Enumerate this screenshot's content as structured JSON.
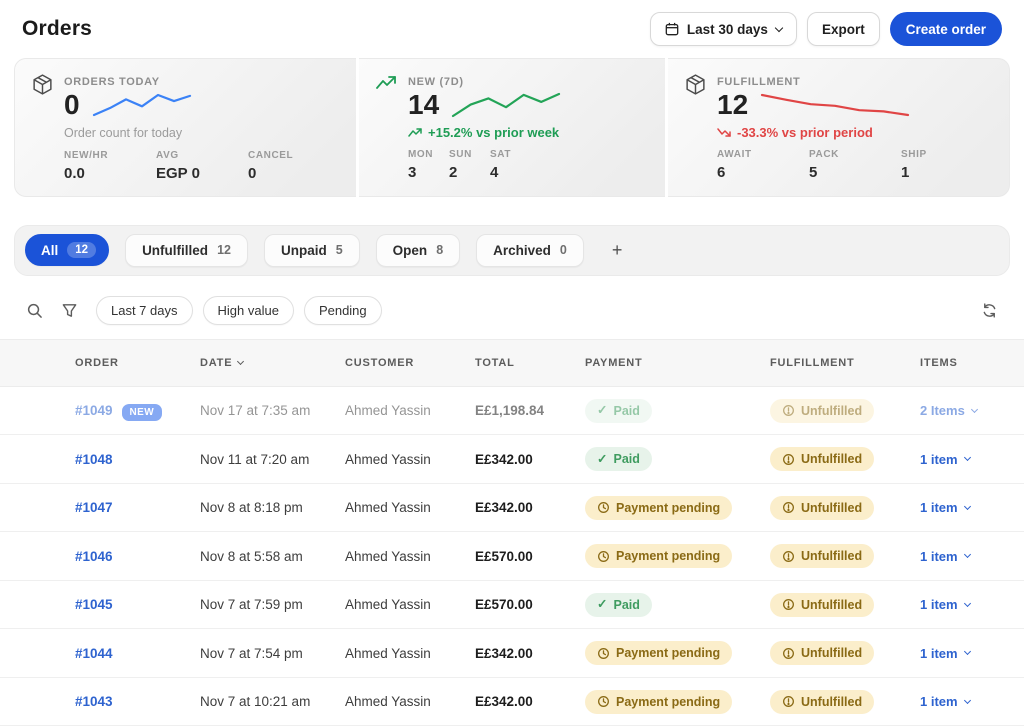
{
  "page": {
    "title": "Orders"
  },
  "header_actions": {
    "date_range_label": "Last 30 days",
    "export_label": "Export",
    "create_order_label": "Create order"
  },
  "colors": {
    "primary_blue": "#1b53d8",
    "badge_blue": "#2563eb",
    "link_blue": "#2e63cf",
    "positive_green": "#1f9d55",
    "negative_red": "#e04545",
    "spark_blue": "#3b82f6",
    "spark_green": "#23a457",
    "spark_red": "#e04545",
    "badge_green_bg": "#e7f3ea",
    "badge_green_text": "#3f9c60",
    "badge_yellow_bg": "#fbeecb",
    "badge_yellow_text": "#8a6a15"
  },
  "stats": {
    "cards": [
      {
        "icon": "package-icon",
        "label": "ORDERS TODAY",
        "value": "0",
        "caption": "Order count for today",
        "spark_color": "#3b82f6",
        "sparkline": [
          2,
          3.6,
          5.6,
          4.0,
          6.6,
          5.2,
          6.4
        ],
        "substats": [
          {
            "label": "NEW/HR",
            "value": "0.0"
          },
          {
            "label": "AVG",
            "value": "EGP 0"
          },
          {
            "label": "CANCEL",
            "value": "0"
          }
        ]
      },
      {
        "icon": "trend-up-icon",
        "label": "NEW (7D)",
        "value": "14",
        "trend_text": "+15.2% vs prior week",
        "trend_direction": "up",
        "spark_color": "#23a457",
        "sparkline": [
          2.2,
          4.8,
          6.2,
          4.2,
          7.0,
          5.4,
          7.2
        ],
        "substats": [
          {
            "label": "MON",
            "value": "3"
          },
          {
            "label": "SUN",
            "value": "2"
          },
          {
            "label": "SAT",
            "value": "4"
          }
        ]
      },
      {
        "icon": "package-icon",
        "label": "FULFILLMENT",
        "value": "12",
        "trend_text": "-33.3% vs prior period",
        "trend_direction": "down",
        "spark_color": "#e04545",
        "sparkline": [
          8.3,
          7.1,
          6.0,
          5.6,
          4.5,
          4.2,
          3.3
        ],
        "substats": [
          {
            "label": "AWAIT",
            "value": "6"
          },
          {
            "label": "PACK",
            "value": "5"
          },
          {
            "label": "SHIP",
            "value": "1"
          }
        ]
      }
    ]
  },
  "tabs": [
    {
      "label": "All",
      "count": "12",
      "active": true
    },
    {
      "label": "Unfulfilled",
      "count": "12",
      "active": false
    },
    {
      "label": "Unpaid",
      "count": "5",
      "active": false
    },
    {
      "label": "Open",
      "count": "8",
      "active": false
    },
    {
      "label": "Archived",
      "count": "0",
      "active": false
    }
  ],
  "add_tab_label": "+",
  "filters": {
    "chips": [
      "Last 7 days",
      "High value",
      "Pending"
    ]
  },
  "table": {
    "columns": [
      "ORDER",
      "DATE",
      "CUSTOMER",
      "TOTAL",
      "PAYMENT",
      "FULFILLMENT",
      "ITEMS"
    ],
    "sort_column": "DATE",
    "new_badge_label": "NEW",
    "rows": [
      {
        "order": "#1049",
        "new": true,
        "faded": true,
        "date": "Nov 17 at 7:35 am",
        "customer": "Ahmed Yassin",
        "total": "E£1,198.84",
        "payment": {
          "label": "Paid",
          "status": "paid"
        },
        "fulfillment": {
          "label": "Unfulfilled",
          "status": "unfulfilled"
        },
        "items": "2 Items"
      },
      {
        "order": "#1048",
        "new": false,
        "faded": false,
        "date": "Nov 11 at 7:20 am",
        "customer": "Ahmed Yassin",
        "total": "E£342.00",
        "payment": {
          "label": "Paid",
          "status": "paid"
        },
        "fulfillment": {
          "label": "Unfulfilled",
          "status": "unfulfilled"
        },
        "items": "1 item"
      },
      {
        "order": "#1047",
        "new": false,
        "faded": false,
        "date": "Nov 8 at 8:18 pm",
        "customer": "Ahmed Yassin",
        "total": "E£342.00",
        "payment": {
          "label": "Payment pending",
          "status": "pending"
        },
        "fulfillment": {
          "label": "Unfulfilled",
          "status": "unfulfilled"
        },
        "items": "1 item"
      },
      {
        "order": "#1046",
        "new": false,
        "faded": false,
        "date": "Nov 8 at 5:58 am",
        "customer": "Ahmed Yassin",
        "total": "E£570.00",
        "payment": {
          "label": "Payment pending",
          "status": "pending"
        },
        "fulfillment": {
          "label": "Unfulfilled",
          "status": "unfulfilled"
        },
        "items": "1 item"
      },
      {
        "order": "#1045",
        "new": false,
        "faded": false,
        "date": "Nov 7 at 7:59 pm",
        "customer": "Ahmed Yassin",
        "total": "E£570.00",
        "payment": {
          "label": "Paid",
          "status": "paid"
        },
        "fulfillment": {
          "label": "Unfulfilled",
          "status": "unfulfilled"
        },
        "items": "1 item"
      },
      {
        "order": "#1044",
        "new": false,
        "faded": false,
        "date": "Nov 7 at 7:54 pm",
        "customer": "Ahmed Yassin",
        "total": "E£342.00",
        "payment": {
          "label": "Payment pending",
          "status": "pending"
        },
        "fulfillment": {
          "label": "Unfulfilled",
          "status": "unfulfilled"
        },
        "items": "1 item"
      },
      {
        "order": "#1043",
        "new": false,
        "faded": false,
        "date": "Nov 7 at 10:21 am",
        "customer": "Ahmed Yassin",
        "total": "E£342.00",
        "payment": {
          "label": "Payment pending",
          "status": "pending"
        },
        "fulfillment": {
          "label": "Unfulfilled",
          "status": "unfulfilled"
        },
        "items": "1 item"
      }
    ]
  }
}
